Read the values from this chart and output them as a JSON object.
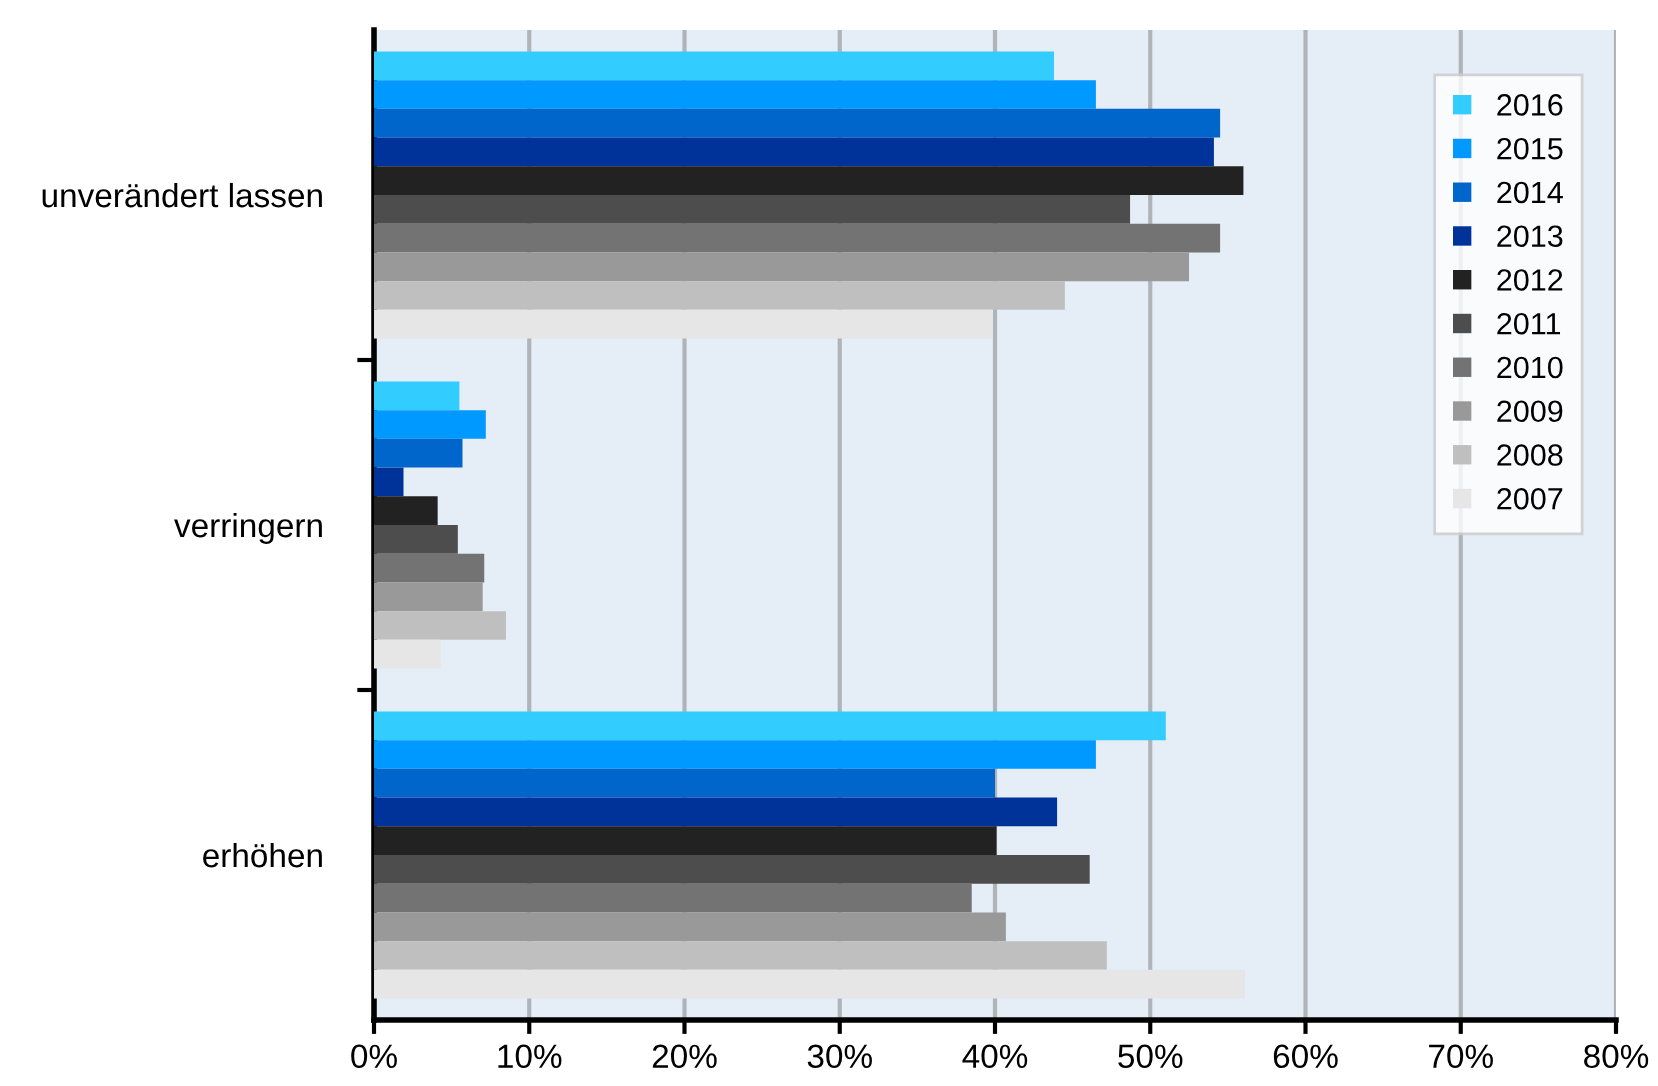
{
  "chart_data": {
    "type": "bar",
    "orientation": "horizontal",
    "categories": [
      "unverändert lassen",
      "verringern",
      "erhöhen"
    ],
    "series": [
      {
        "name": "2016",
        "color": "#33ccff",
        "values": [
          43.8,
          5.5,
          51.0
        ]
      },
      {
        "name": "2015",
        "color": "#0099ff",
        "values": [
          46.5,
          7.2,
          46.5
        ]
      },
      {
        "name": "2014",
        "color": "#0066cc",
        "values": [
          54.5,
          5.7,
          40.0
        ]
      },
      {
        "name": "2013",
        "color": "#003399",
        "values": [
          54.1,
          1.9,
          44.0
        ]
      },
      {
        "name": "2012",
        "color": "#222222",
        "values": [
          56.0,
          4.1,
          40.1
        ]
      },
      {
        "name": "2011",
        "color": "#4d4d4d",
        "values": [
          48.7,
          5.4,
          46.1
        ]
      },
      {
        "name": "2010",
        "color": "#737373",
        "values": [
          54.5,
          7.1,
          38.5
        ]
      },
      {
        "name": "2009",
        "color": "#999999",
        "values": [
          52.5,
          7.0,
          40.7
        ]
      },
      {
        "name": "2008",
        "color": "#bfbfbf",
        "values": [
          44.5,
          8.5,
          47.2
        ]
      },
      {
        "name": "2007",
        "color": "#e6e6e6",
        "values": [
          39.8,
          4.3,
          56.1
        ]
      }
    ],
    "xlim": [
      0,
      80
    ],
    "xticks": [
      {
        "value": 0,
        "label": "0%"
      },
      {
        "value": 10,
        "label": "10%"
      },
      {
        "value": 20,
        "label": "20%"
      },
      {
        "value": 30,
        "label": "30%"
      },
      {
        "value": 40,
        "label": "40%"
      },
      {
        "value": 50,
        "label": "50%"
      },
      {
        "value": 60,
        "label": "60%"
      },
      {
        "value": 70,
        "label": "70%"
      },
      {
        "value": 80,
        "label": "80%"
      }
    ],
    "grid": "x",
    "legend": "top right"
  }
}
